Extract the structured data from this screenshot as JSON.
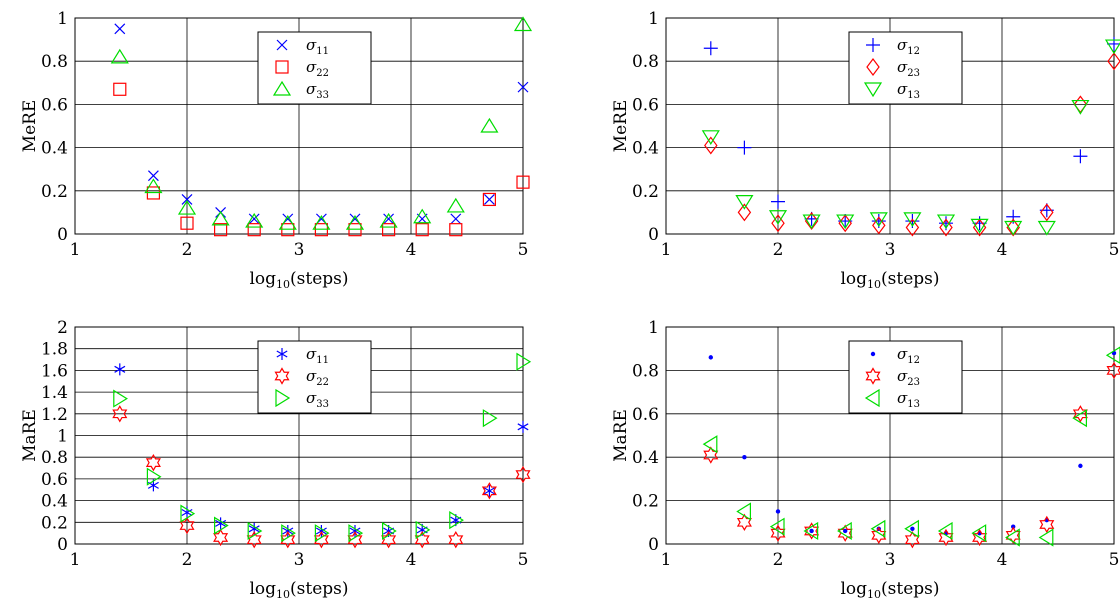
{
  "chart_data": [
    {
      "type": "scatter",
      "xlabel": "log10(steps)",
      "ylabel": "MeRE",
      "xlim": [
        1,
        5
      ],
      "ylim": [
        0,
        1
      ],
      "xticks": [
        "1",
        "2",
        "3",
        "4",
        "5"
      ],
      "yticks": [
        "0",
        "0.2",
        "0.4",
        "0.6",
        "0.8",
        "1"
      ],
      "grid": true,
      "legend_position": "top-center",
      "x": [
        1.4,
        1.7,
        2.0,
        2.3,
        2.6,
        2.9,
        3.2,
        3.5,
        3.8,
        4.1,
        4.4,
        4.7,
        5.0
      ],
      "series": [
        {
          "name": "σ11",
          "marker": "x",
          "color": "#0000ff",
          "values": [
            0.95,
            0.27,
            0.16,
            0.1,
            0.07,
            0.07,
            0.07,
            0.07,
            0.07,
            0.07,
            0.07,
            0.16,
            0.68
          ]
        },
        {
          "name": "σ22",
          "marker": "square",
          "color": "#ff0000",
          "values": [
            0.67,
            0.19,
            0.05,
            0.02,
            0.02,
            0.02,
            0.02,
            0.02,
            0.02,
            0.02,
            0.02,
            0.16,
            0.24
          ]
        },
        {
          "name": "σ33",
          "marker": "triangle-up",
          "color": "#00dd00",
          "values": [
            0.82,
            0.22,
            0.12,
            0.07,
            0.06,
            0.05,
            0.05,
            0.05,
            0.06,
            0.08,
            0.13,
            0.5,
            0.97
          ]
        }
      ]
    },
    {
      "type": "scatter",
      "xlabel": "log10(steps)",
      "ylabel": "MeRE",
      "xlim": [
        1,
        5
      ],
      "ylim": [
        0,
        1
      ],
      "xticks": [
        "1",
        "2",
        "3",
        "4",
        "5"
      ],
      "yticks": [
        "0",
        "0.2",
        "0.4",
        "0.6",
        "0.8",
        "1"
      ],
      "grid": true,
      "legend_position": "top-center",
      "x": [
        1.4,
        1.7,
        2.0,
        2.3,
        2.6,
        2.9,
        3.2,
        3.5,
        3.8,
        4.1,
        4.4,
        4.7,
        5.0
      ],
      "series": [
        {
          "name": "σ12",
          "marker": "plus",
          "color": "#0000ff",
          "values": [
            0.86,
            0.4,
            0.15,
            0.07,
            0.06,
            0.06,
            0.06,
            0.05,
            0.05,
            0.08,
            0.11,
            0.36,
            0.88
          ]
        },
        {
          "name": "σ23",
          "marker": "diamond",
          "color": "#ff0000",
          "values": [
            0.41,
            0.1,
            0.05,
            0.06,
            0.05,
            0.04,
            0.03,
            0.03,
            0.03,
            0.03,
            0.1,
            0.6,
            0.8
          ]
        },
        {
          "name": "σ13",
          "marker": "triangle-down",
          "color": "#00dd00",
          "values": [
            0.45,
            0.15,
            0.08,
            0.06,
            0.06,
            0.07,
            0.07,
            0.06,
            0.04,
            0.03,
            0.03,
            0.59,
            0.87
          ]
        }
      ]
    },
    {
      "type": "scatter",
      "xlabel": "log10(steps)",
      "ylabel": "MaRE",
      "xlim": [
        1,
        5
      ],
      "ylim": [
        0,
        2
      ],
      "xticks": [
        "1",
        "2",
        "3",
        "4",
        "5"
      ],
      "yticks": [
        "0",
        "0.2",
        "0.4",
        "0.6",
        "0.8",
        "1",
        "1.2",
        "1.4",
        "1.6",
        "1.8",
        "2"
      ],
      "grid": true,
      "legend_position": "top-center",
      "x": [
        1.4,
        1.7,
        2.0,
        2.3,
        2.6,
        2.9,
        3.2,
        3.5,
        3.8,
        4.1,
        4.4,
        4.7,
        5.0
      ],
      "series": [
        {
          "name": "σ11",
          "marker": "asterisk",
          "color": "#0000ff",
          "values": [
            1.61,
            0.54,
            0.29,
            0.19,
            0.14,
            0.12,
            0.12,
            0.12,
            0.12,
            0.13,
            0.22,
            0.49,
            1.08
          ]
        },
        {
          "name": "σ22",
          "marker": "hexagram",
          "color": "#ff0000",
          "values": [
            1.2,
            0.75,
            0.17,
            0.06,
            0.04,
            0.04,
            0.04,
            0.04,
            0.04,
            0.04,
            0.04,
            0.49,
            0.64
          ]
        },
        {
          "name": "σ33",
          "marker": "triangle-right",
          "color": "#00dd00",
          "values": [
            1.34,
            0.62,
            0.28,
            0.17,
            0.12,
            0.1,
            0.1,
            0.1,
            0.12,
            0.13,
            0.22,
            1.16,
            1.68
          ]
        }
      ]
    },
    {
      "type": "scatter",
      "xlabel": "log10(steps)",
      "ylabel": "MaRE",
      "xlim": [
        1,
        5
      ],
      "ylim": [
        0,
        1
      ],
      "xticks": [
        "1",
        "2",
        "3",
        "4",
        "5"
      ],
      "yticks": [
        "0",
        "0.2",
        "0.4",
        "0.6",
        "0.8",
        "1"
      ],
      "grid": true,
      "legend_position": "top-center",
      "x": [
        1.4,
        1.7,
        2.0,
        2.3,
        2.6,
        2.9,
        3.2,
        3.5,
        3.8,
        4.1,
        4.4,
        4.7,
        5.0
      ],
      "series": [
        {
          "name": "σ12",
          "marker": "dot",
          "color": "#0000ff",
          "values": [
            0.86,
            0.4,
            0.15,
            0.06,
            0.06,
            0.07,
            0.07,
            0.05,
            0.05,
            0.08,
            0.11,
            0.36,
            0.88
          ]
        },
        {
          "name": "σ23",
          "marker": "hexagram",
          "color": "#ff0000",
          "values": [
            0.41,
            0.1,
            0.05,
            0.06,
            0.05,
            0.04,
            0.02,
            0.03,
            0.03,
            0.04,
            0.09,
            0.6,
            0.8
          ]
        },
        {
          "name": "σ13",
          "marker": "triangle-left",
          "color": "#00dd00",
          "values": [
            0.46,
            0.15,
            0.08,
            0.06,
            0.06,
            0.07,
            0.07,
            0.06,
            0.05,
            0.03,
            0.03,
            0.58,
            0.87
          ]
        }
      ]
    }
  ]
}
